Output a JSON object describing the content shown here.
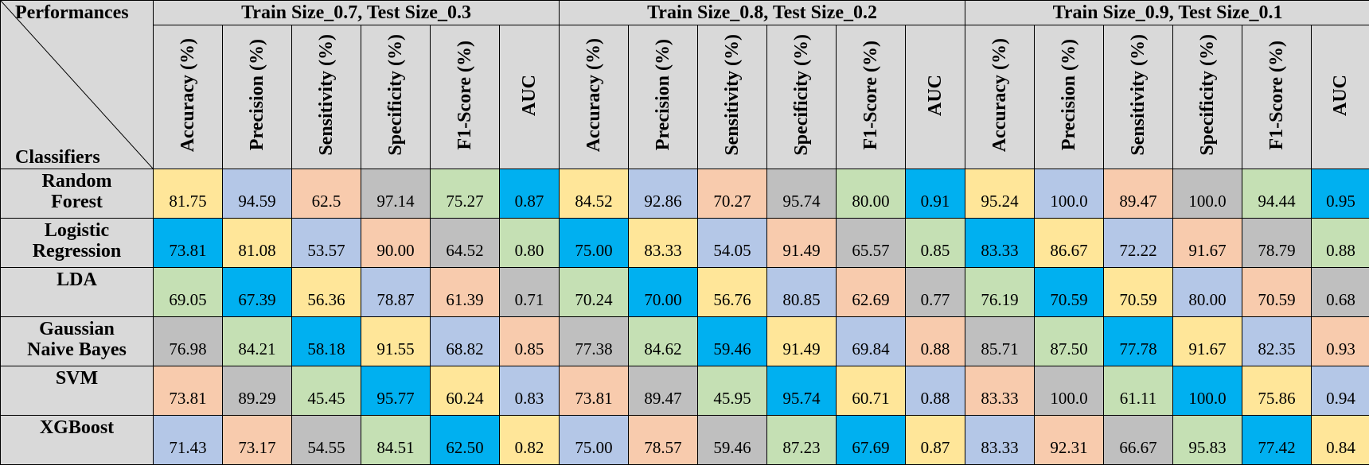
{
  "table": {
    "corner_top": "Performances",
    "corner_bottom": "Classifiers",
    "groups": [
      "Train Size_0.7, Test Size_0.3",
      "Train Size_0.8, Test Size_0.2",
      "Train Size_0.9, Test Size_0.1"
    ],
    "metrics": [
      "Accuracy (%)",
      "Precision (%)",
      "Sensitivity (%)",
      "Specificity (%)",
      "F1-Score (%)",
      "AUC"
    ],
    "rows": [
      {
        "name_lines": [
          "Random",
          "Forest"
        ],
        "values": [
          "81.75",
          "94.59",
          "62.5",
          "97.14",
          "75.27",
          "0.87",
          "84.52",
          "92.86",
          "70.27",
          "95.74",
          "80.00",
          "0.91",
          "95.24",
          "100.0",
          "89.47",
          "100.0",
          "94.44",
          "0.95"
        ]
      },
      {
        "name_lines": [
          "Logistic",
          "Regression"
        ],
        "values": [
          "73.81",
          "81.08",
          "53.57",
          "90.00",
          "64.52",
          "0.80",
          "75.00",
          "83.33",
          "54.05",
          "91.49",
          "65.57",
          "0.85",
          "83.33",
          "86.67",
          "72.22",
          "91.67",
          "78.79",
          "0.88"
        ]
      },
      {
        "name_lines": [
          "LDA"
        ],
        "values": [
          "69.05",
          "67.39",
          "56.36",
          "78.87",
          "61.39",
          "0.71",
          "70.24",
          "70.00",
          "56.76",
          "80.85",
          "62.69",
          "0.77",
          "76.19",
          "70.59",
          "70.59",
          "80.00",
          "70.59",
          "0.68"
        ]
      },
      {
        "name_lines": [
          "Gaussian",
          "Naive Bayes"
        ],
        "values": [
          "76.98",
          "84.21",
          "58.18",
          "91.55",
          "68.82",
          "0.85",
          "77.38",
          "84.62",
          "59.46",
          "91.49",
          "69.84",
          "0.88",
          "85.71",
          "87.50",
          "77.78",
          "91.67",
          "82.35",
          "0.93"
        ]
      },
      {
        "name_lines": [
          "SVM"
        ],
        "values": [
          "73.81",
          "89.29",
          "45.45",
          "95.77",
          "60.24",
          "0.83",
          "73.81",
          "89.47",
          "45.95",
          "95.74",
          "60.71",
          "0.88",
          "83.33",
          "100.0",
          "61.11",
          "100.0",
          "75.86",
          "0.94"
        ]
      },
      {
        "name_lines": [
          "XGBoost"
        ],
        "values": [
          "71.43",
          "73.17",
          "54.55",
          "84.51",
          "62.50",
          "0.82",
          "75.00",
          "78.57",
          "59.46",
          "87.23",
          "67.69",
          "0.87",
          "83.33",
          "92.31",
          "66.67",
          "95.83",
          "77.42",
          "0.84"
        ]
      }
    ],
    "colors": {
      "yellow": "#ffe699",
      "blue": "#b4c7e7",
      "salmon": "#f8cbad",
      "gray": "#bfbfbf",
      "green": "#c5e0b4",
      "cyan": "#00b0f0",
      "header": "#d9d9d9"
    },
    "row_color_pattern": [
      [
        "yellow",
        "blue",
        "salmon",
        "gray",
        "green",
        "cyan"
      ],
      [
        "cyan",
        "yellow",
        "blue",
        "salmon",
        "gray",
        "green"
      ],
      [
        "green",
        "cyan",
        "yellow",
        "blue",
        "salmon",
        "gray"
      ],
      [
        "gray",
        "green",
        "cyan",
        "yellow",
        "blue",
        "salmon"
      ],
      [
        "salmon",
        "gray",
        "green",
        "cyan",
        "yellow",
        "blue"
      ],
      [
        "blue",
        "salmon",
        "gray",
        "green",
        "cyan",
        "yellow"
      ]
    ]
  }
}
